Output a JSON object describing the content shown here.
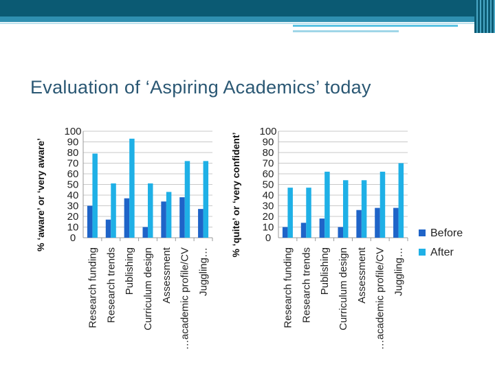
{
  "slide": {
    "title": "Evaluation of ‘Aspiring Academics’ today"
  },
  "colors": {
    "header": "#0b5a73",
    "before": "#1f64c8",
    "after": "#1fb0e6",
    "title": "#2a5773"
  },
  "legend": [
    "Before",
    "After"
  ],
  "chart_data": [
    {
      "type": "bar",
      "title": "",
      "xlabel": "",
      "ylabel": "% ‘aware’ or ‘very aware’",
      "ylim": [
        0,
        100
      ],
      "yticks": [
        100,
        90,
        80,
        70,
        60,
        50,
        40,
        30,
        20,
        10,
        0
      ],
      "grid": true,
      "legend": "right",
      "categories": [
        "Research funding",
        "Research trends",
        "Publishing",
        "Curriculum design",
        "Assessment",
        "…academic profile/CV",
        "Juggling…"
      ],
      "series": [
        {
          "name": "Before",
          "values": [
            30,
            17,
            37,
            10,
            34,
            38,
            27
          ]
        },
        {
          "name": "After",
          "values": [
            79,
            51,
            93,
            51,
            43,
            72,
            72
          ]
        }
      ]
    },
    {
      "type": "bar",
      "title": "",
      "xlabel": "",
      "ylabel": "% ‘quite’ or ‘very confident’",
      "ylim": [
        0,
        100
      ],
      "yticks": [
        100,
        90,
        80,
        70,
        60,
        50,
        40,
        30,
        20,
        10,
        0
      ],
      "grid": true,
      "legend": "right",
      "categories": [
        "Research funding",
        "Research trends",
        "Publishing",
        "Curriculum design",
        "Assessment",
        "…academic profile/CV",
        "Juggling…"
      ],
      "series": [
        {
          "name": "Before",
          "values": [
            10,
            14,
            18,
            10,
            26,
            28,
            28
          ]
        },
        {
          "name": "After",
          "values": [
            47,
            47,
            62,
            54,
            54,
            62,
            70
          ]
        }
      ]
    }
  ]
}
